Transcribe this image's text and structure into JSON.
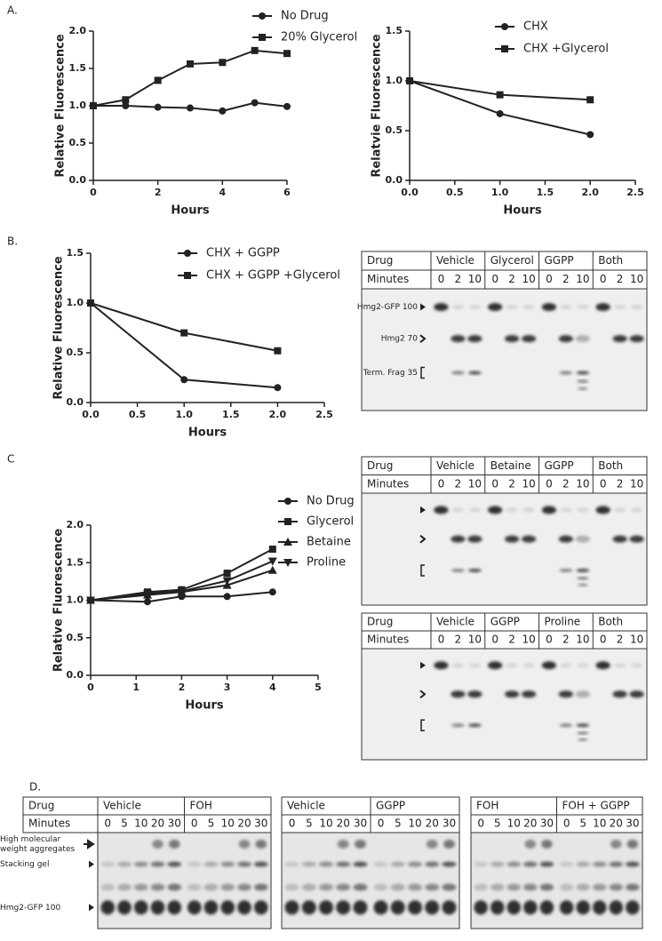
{
  "panel_labels": [
    "A.",
    "B.",
    "C",
    "D."
  ],
  "chart_data": [
    {
      "type": "line",
      "xlabel": "Hours",
      "ylabel": "Relative Fluorescence",
      "xlim": [
        0,
        6
      ],
      "xticks": [
        0,
        2,
        4,
        6
      ],
      "ylim": [
        0,
        2
      ],
      "yticks": [
        {
          "value": 0,
          "label": "0.0"
        },
        0.5,
        {
          "value": 1,
          "label": "1.0"
        },
        1.5,
        {
          "value": 2,
          "label": "2.0"
        }
      ],
      "legend": "top-right",
      "series": [
        {
          "name": "No Drug",
          "color": "#222222",
          "marker": "circle",
          "x": [
            0,
            1,
            2,
            3,
            4,
            5,
            6
          ],
          "values": [
            1.0,
            1.0,
            0.98,
            0.97,
            0.93,
            1.04,
            0.99
          ]
        },
        {
          "name": "20% Glycerol",
          "color": "#222222",
          "marker": "square",
          "x": [
            0,
            1,
            2,
            3,
            4,
            5,
            6
          ],
          "values": [
            1.0,
            1.08,
            1.34,
            1.56,
            1.58,
            1.74,
            1.7
          ]
        }
      ]
    },
    {
      "type": "line",
      "xlabel": "Hours",
      "ylabel": "Relatvie Fluorescence",
      "xlim": [
        0,
        2.5
      ],
      "xticks": [
        {
          "value": 0,
          "label": "0.0"
        },
        0.5,
        {
          "value": 1,
          "label": "1.0"
        },
        1.5,
        {
          "value": 2,
          "label": "2.0"
        },
        2.5
      ],
      "ylim": [
        0,
        1.5
      ],
      "yticks": [
        {
          "value": 0,
          "label": "0.0"
        },
        0.5,
        {
          "value": 1,
          "label": "1.0"
        },
        1.5
      ],
      "legend": "top-right",
      "series": [
        {
          "name": "CHX",
          "color": "#222222",
          "marker": "circle",
          "x": [
            0,
            1,
            2
          ],
          "values": [
            1.0,
            0.67,
            0.46
          ]
        },
        {
          "name": "CHX +Glycerol",
          "color": "#222222",
          "marker": "square",
          "x": [
            0,
            1,
            2
          ],
          "values": [
            1.0,
            0.86,
            0.81
          ]
        }
      ]
    },
    {
      "type": "line",
      "xlabel": "Hours",
      "ylabel": "Relative Fluorescence",
      "xlim": [
        0,
        2.5
      ],
      "xticks": [
        {
          "value": 0,
          "label": "0.0"
        },
        0.5,
        {
          "value": 1,
          "label": "1.0"
        },
        1.5,
        {
          "value": 2,
          "label": "2.0"
        },
        2.5
      ],
      "ylim": [
        0,
        1.5
      ],
      "yticks": [
        {
          "value": 0,
          "label": "0.0"
        },
        0.5,
        {
          "value": 1,
          "label": "1.0"
        },
        1.5
      ],
      "legend": "top-right",
      "series": [
        {
          "name": "CHX + GGPP",
          "color": "#222222",
          "marker": "circle",
          "x": [
            0,
            1,
            2
          ],
          "values": [
            1.0,
            0.23,
            0.15
          ]
        },
        {
          "name": "CHX + GGPP +Glycerol",
          "color": "#222222",
          "marker": "square",
          "x": [
            0,
            1,
            2
          ],
          "values": [
            1.0,
            0.7,
            0.52
          ]
        }
      ]
    },
    {
      "type": "line",
      "xlabel": "Hours",
      "ylabel": "Relative Fluorescence",
      "xlim": [
        0,
        5
      ],
      "xticks": [
        0,
        1,
        2,
        3,
        4,
        5
      ],
      "ylim": [
        0,
        2
      ],
      "yticks": [
        {
          "value": 0,
          "label": "0.0"
        },
        0.5,
        {
          "value": 1,
          "label": "1.0"
        },
        1.5,
        {
          "value": 2,
          "label": "2.0"
        }
      ],
      "legend": "top-right",
      "series": [
        {
          "name": "No Drug",
          "color": "#222222",
          "marker": "circle",
          "x": [
            0,
            1.25,
            2,
            3,
            4
          ],
          "values": [
            1.0,
            0.98,
            1.05,
            1.05,
            1.11
          ]
        },
        {
          "name": "Glycerol",
          "color": "#222222",
          "marker": "square",
          "x": [
            0,
            1.25,
            2,
            3,
            4
          ],
          "values": [
            1.0,
            1.11,
            1.14,
            1.36,
            1.68
          ]
        },
        {
          "name": "Betaine",
          "color": "#222222",
          "marker": "triangle-up",
          "x": [
            0,
            1.25,
            2,
            3,
            4
          ],
          "values": [
            1.0,
            1.07,
            1.11,
            1.2,
            1.4
          ]
        },
        {
          "name": "Proline",
          "color": "#222222",
          "marker": "triangle-down",
          "x": [
            0,
            1.25,
            2,
            3,
            4
          ],
          "values": [
            1.0,
            1.09,
            1.12,
            1.26,
            1.52
          ]
        }
      ]
    }
  ],
  "blots": [
    {
      "row_labels": [
        "Drug",
        "Minutes"
      ],
      "groups": [
        "Vehicle",
        "Glycerol",
        "GGPP",
        "Both"
      ],
      "minutes": [
        0,
        2,
        10,
        0,
        2,
        10,
        0,
        2,
        10,
        0,
        2,
        10
      ],
      "band_labels": [
        "Hmg2-GFP 100",
        "Hmg2 70",
        "Term. Frag 35"
      ]
    },
    {
      "row_labels": [
        "Drug",
        "Minutes"
      ],
      "groups": [
        "Vehicle",
        "Betaine",
        "GGPP",
        "Both"
      ],
      "minutes": [
        0,
        2,
        10,
        0,
        2,
        10,
        0,
        2,
        10,
        0,
        2,
        10
      ]
    },
    {
      "row_labels": [
        "Drug",
        "Minutes"
      ],
      "groups": [
        "Vehicle",
        "GGPP",
        "Proline",
        "Both"
      ],
      "minutes": [
        0,
        2,
        10,
        0,
        2,
        10,
        0,
        2,
        10,
        0,
        2,
        10
      ]
    },
    {
      "row_labels": [
        "Drug",
        "Minutes"
      ],
      "groups": [
        "Vehicle",
        "FOH"
      ],
      "minutes": [
        0,
        5,
        10,
        20,
        30,
        0,
        5,
        10,
        20,
        30
      ],
      "band_labels": [
        "High molecular weight aggregates",
        "Stacking gel",
        "Hmg2-GFP 100"
      ]
    },
    {
      "groups": [
        "Vehicle",
        "GGPP"
      ],
      "minutes": [
        0,
        5,
        10,
        20,
        30,
        0,
        5,
        10,
        20,
        30
      ]
    },
    {
      "groups": [
        "FOH",
        "FOH + GGPP"
      ],
      "minutes": [
        0,
        5,
        10,
        20,
        30,
        0,
        5,
        10,
        20,
        30
      ]
    }
  ]
}
